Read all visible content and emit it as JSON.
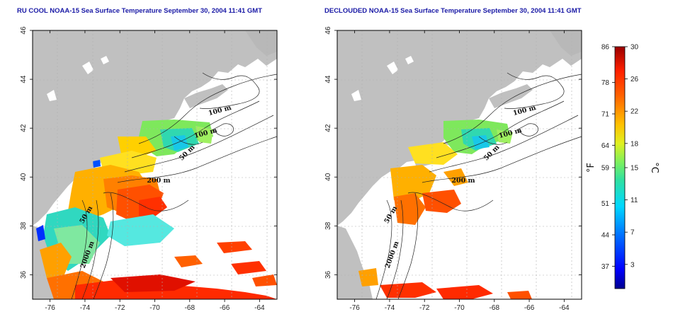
{
  "panels": [
    {
      "id": "left",
      "title": "RU COOL NOAA-15 Sea Surface Temperature September 30, 2004 11:41 GMT"
    },
    {
      "id": "right",
      "title": "DECLOUDED NOAA-15 Sea Surface Temperature September 30, 2004 11:41 GMT"
    }
  ],
  "axes": {
    "lon_ticks": [
      "-76",
      "-74",
      "-72",
      "-70",
      "-68",
      "-66",
      "-64"
    ],
    "lat_ticks": [
      "36",
      "38",
      "40",
      "42",
      "44",
      "46"
    ],
    "lon_range": [
      -77,
      -63
    ],
    "lat_range": [
      35,
      46
    ]
  },
  "contour_labels": {
    "left": [
      "100 m",
      "100 m",
      "50 m",
      "200 m",
      "50 m",
      "2000 m"
    ],
    "right": [
      "100 m",
      "100 m",
      "50 m",
      "200 m",
      "50 m",
      "2000 m"
    ]
  },
  "colorbar": {
    "fahrenheit_ticks": [
      "86",
      "78",
      "71",
      "64",
      "59",
      "51",
      "44",
      "37"
    ],
    "celsius_ticks": [
      "30",
      "26",
      "22",
      "18",
      "15",
      "11",
      "7",
      "3"
    ],
    "fahrenheit_unit": "°F",
    "celsius_unit": "°C",
    "range_c": [
      0,
      30
    ]
  },
  "colors": {
    "land": "#c0c0c0",
    "water": "#ffffff",
    "grid": "#b0b0b0",
    "title": "#1a1aa6"
  }
}
